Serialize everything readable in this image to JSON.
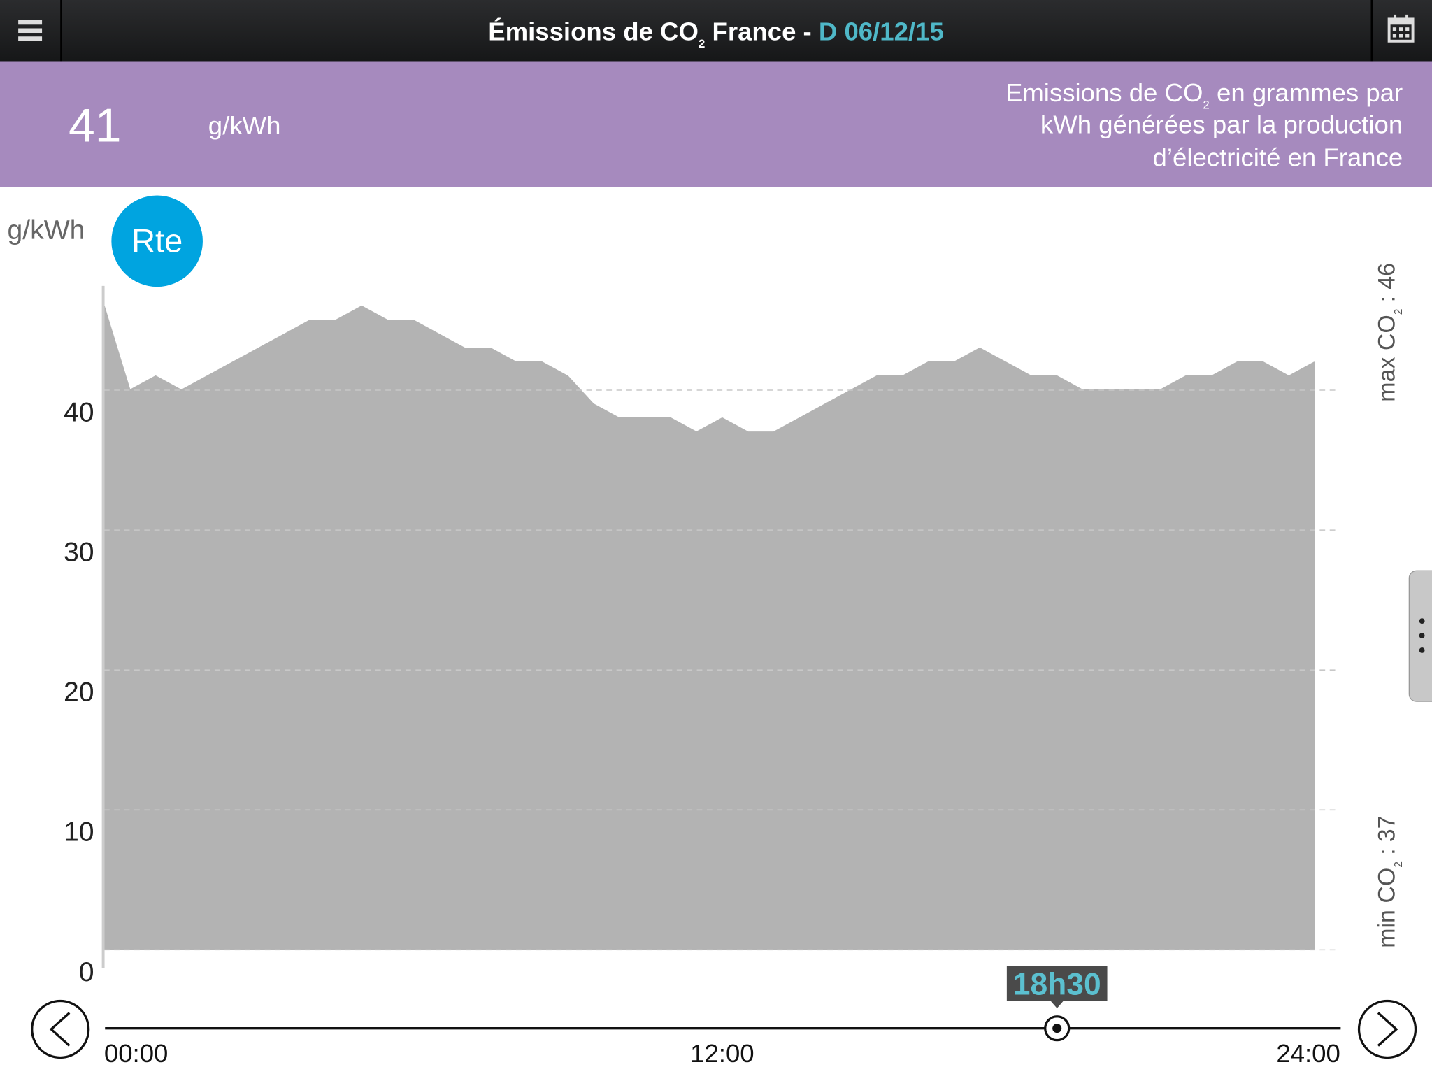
{
  "header": {
    "title": "Émissions de CO",
    "title_sub": "2",
    "title_rest": " France - ",
    "date": "D 06/12/15"
  },
  "summary": {
    "value": 41,
    "unit": "g/kWh",
    "description": {
      "line1_start": "Emissions de CO",
      "line1_sub": "2",
      "line1_end": " en grammes par",
      "line2": "kWh générées par la production",
      "line3": "d’électricité en France"
    }
  },
  "logo": "Rte",
  "chart_data": {
    "type": "area",
    "y_label": "g/kWh",
    "x": [
      0,
      0.5,
      1,
      1.5,
      2,
      2.5,
      3,
      3.5,
      4,
      4.5,
      5,
      5.5,
      6,
      6.5,
      7,
      7.5,
      8,
      8.5,
      9,
      9.5,
      10,
      10.5,
      11,
      11.5,
      12,
      12.5,
      13,
      13.5,
      14,
      14.5,
      15,
      15.5,
      16,
      16.5,
      17,
      17.5,
      18,
      18.5,
      19,
      19.5,
      20,
      20.5,
      21,
      21.5,
      22,
      22.5,
      23,
      23.5
    ],
    "values": [
      46,
      40,
      41,
      40,
      41,
      42,
      43,
      44,
      45,
      45,
      46,
      45,
      45,
      44,
      43,
      43,
      42,
      42,
      41,
      39,
      38,
      38,
      38,
      37,
      38,
      37,
      37,
      38,
      39,
      40,
      41,
      41,
      42,
      42,
      43,
      42,
      41,
      41,
      40,
      40,
      40,
      40,
      41,
      41,
      42,
      42,
      41,
      42
    ],
    "color": "#b3b3b3",
    "xlim": [
      0,
      24
    ],
    "xticks": [
      {
        "value": 0,
        "label": "00:00"
      },
      {
        "value": 12,
        "label": "12:00"
      },
      {
        "value": 24,
        "label": "24:00"
      }
    ],
    "ylim": [
      0,
      47
    ],
    "yticks": [
      0,
      10,
      20,
      30,
      40
    ],
    "grid": true,
    "max": {
      "label": "max CO",
      "sub": "2",
      "separator": ":",
      "value": 46
    },
    "min": {
      "label": "min CO",
      "sub": "2",
      "separator": ":",
      "value": 37
    },
    "cursor": {
      "value": 18.5,
      "label": "18h30"
    }
  }
}
